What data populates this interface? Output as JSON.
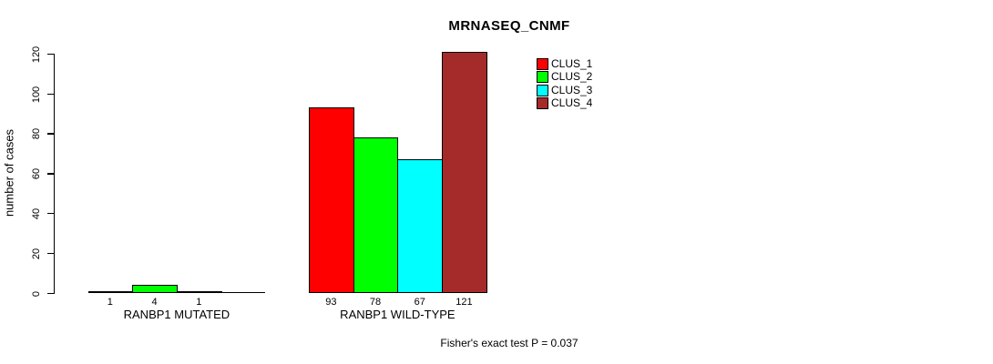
{
  "chart_data": {
    "type": "bar",
    "title": "MRNASEQ_CNMF",
    "xlabel": "",
    "ylabel": "number of cases",
    "ylim": [
      0,
      120
    ],
    "yticks": [
      0,
      20,
      40,
      60,
      80,
      100,
      120
    ],
    "grid": false,
    "legend_position": "top-right",
    "categories": [
      "RANBP1 MUTATED",
      "RANBP1 WILD-TYPE"
    ],
    "series": [
      {
        "name": "CLUS_1",
        "color": "#FF0000",
        "values": [
          1,
          93
        ]
      },
      {
        "name": "CLUS_2",
        "color": "#00FF00",
        "values": [
          4,
          78
        ]
      },
      {
        "name": "CLUS_3",
        "color": "#00FFFF",
        "values": [
          1,
          67
        ]
      },
      {
        "name": "CLUS_4",
        "color": "#A52A2A",
        "values": [
          0,
          121
        ]
      }
    ],
    "bar_value_labels_shown": true,
    "zero_value_labels_hidden": true,
    "annotation": "Fisher's exact test P = 0.037",
    "axis_color": "#000000",
    "background_color": "#FFFFFF"
  }
}
